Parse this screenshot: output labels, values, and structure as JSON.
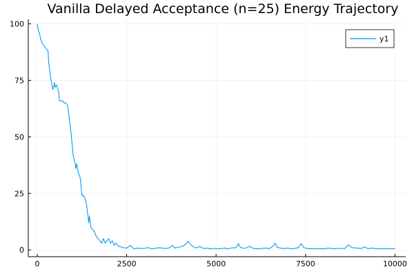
{
  "chart_data": {
    "type": "line",
    "title": "Vanilla Delayed Acceptance (n=25) Energy Trajectory",
    "xlabel": "",
    "ylabel": "",
    "xlim": [
      -250,
      10300
    ],
    "ylim": [
      -3,
      102
    ],
    "xticks": [
      0,
      2500,
      5000,
      7500,
      10000
    ],
    "xtick_labels": [
      "0",
      "2500",
      "5000",
      "7500",
      "10000"
    ],
    "yticks": [
      0,
      25,
      50,
      75,
      100
    ],
    "ytick_labels": [
      "0",
      "25",
      "50",
      "75",
      "100"
    ],
    "grid": true,
    "legend_position": "top-right",
    "series": [
      {
        "name": "y1",
        "color": "#009AFA",
        "points": [
          [
            0,
            100
          ],
          [
            30,
            97
          ],
          [
            60,
            96
          ],
          [
            100,
            93
          ],
          [
            150,
            91
          ],
          [
            200,
            90
          ],
          [
            250,
            89
          ],
          [
            300,
            88
          ],
          [
            320,
            83
          ],
          [
            360,
            78
          ],
          [
            400,
            74
          ],
          [
            430,
            71
          ],
          [
            460,
            72
          ],
          [
            480,
            74
          ],
          [
            500,
            72
          ],
          [
            540,
            73
          ],
          [
            580,
            71
          ],
          [
            600,
            70
          ],
          [
            620,
            66
          ],
          [
            700,
            66
          ],
          [
            760,
            65
          ],
          [
            800,
            65
          ],
          [
            850,
            64
          ],
          [
            880,
            60
          ],
          [
            920,
            55
          ],
          [
            950,
            51
          ],
          [
            980,
            46
          ],
          [
            1000,
            42
          ],
          [
            1050,
            39
          ],
          [
            1080,
            36
          ],
          [
            1100,
            38
          ],
          [
            1130,
            36
          ],
          [
            1150,
            34
          ],
          [
            1200,
            32
          ],
          [
            1220,
            29
          ],
          [
            1250,
            24
          ],
          [
            1300,
            24
          ],
          [
            1350,
            22
          ],
          [
            1380,
            20
          ],
          [
            1400,
            17
          ],
          [
            1420,
            15
          ],
          [
            1440,
            12
          ],
          [
            1460,
            15
          ],
          [
            1480,
            12
          ],
          [
            1500,
            10
          ],
          [
            1550,
            9
          ],
          [
            1600,
            8
          ],
          [
            1650,
            6
          ],
          [
            1700,
            5
          ],
          [
            1750,
            4
          ],
          [
            1800,
            3
          ],
          [
            1850,
            5
          ],
          [
            1900,
            3
          ],
          [
            1950,
            4
          ],
          [
            2000,
            5
          ],
          [
            2050,
            3
          ],
          [
            2100,
            4
          ],
          [
            2150,
            2
          ],
          [
            2200,
            3
          ],
          [
            2250,
            2
          ],
          [
            2300,
            1.5
          ],
          [
            2400,
            1
          ],
          [
            2500,
            0.8
          ],
          [
            2600,
            2
          ],
          [
            2700,
            0.5
          ],
          [
            2800,
            0.8
          ],
          [
            2900,
            0.6
          ],
          [
            3000,
            0.7
          ],
          [
            3100,
            1
          ],
          [
            3200,
            0.5
          ],
          [
            3300,
            0.7
          ],
          [
            3400,
            1
          ],
          [
            3500,
            0.8
          ],
          [
            3600,
            0.6
          ],
          [
            3700,
            0.9
          ],
          [
            3780,
            2
          ],
          [
            3850,
            0.8
          ],
          [
            3950,
            1.2
          ],
          [
            4050,
            1.5
          ],
          [
            4150,
            2.5
          ],
          [
            4220,
            3.8
          ],
          [
            4280,
            2.5
          ],
          [
            4350,
            1.5
          ],
          [
            4450,
            0.8
          ],
          [
            4550,
            1.5
          ],
          [
            4650,
            0.6
          ],
          [
            4750,
            0.8
          ],
          [
            4850,
            0.5
          ],
          [
            4950,
            0.7
          ],
          [
            5050,
            0.5
          ],
          [
            5150,
            0.6
          ],
          [
            5250,
            0.8
          ],
          [
            5350,
            0.5
          ],
          [
            5450,
            1
          ],
          [
            5520,
            0.8
          ],
          [
            5580,
            1.5
          ],
          [
            5620,
            2.8
          ],
          [
            5680,
            1
          ],
          [
            5800,
            0.7
          ],
          [
            5950,
            1.5
          ],
          [
            6050,
            0.6
          ],
          [
            6200,
            0.5
          ],
          [
            6350,
            0.8
          ],
          [
            6500,
            0.6
          ],
          [
            6600,
            1.8
          ],
          [
            6650,
            3
          ],
          [
            6700,
            1.2
          ],
          [
            6850,
            0.6
          ],
          [
            7000,
            0.8
          ],
          [
            7150,
            0.5
          ],
          [
            7300,
            1
          ],
          [
            7380,
            2.8
          ],
          [
            7450,
            1
          ],
          [
            7550,
            0.6
          ],
          [
            7700,
            0.5
          ],
          [
            7850,
            0.6
          ],
          [
            8000,
            0.5
          ],
          [
            8150,
            0.8
          ],
          [
            8300,
            0.5
          ],
          [
            8450,
            0.7
          ],
          [
            8600,
            0.6
          ],
          [
            8650,
            1.5
          ],
          [
            8700,
            2.2
          ],
          [
            8800,
            1
          ],
          [
            8950,
            0.8
          ],
          [
            9050,
            0.6
          ],
          [
            9150,
            1.3
          ],
          [
            9250,
            0.5
          ],
          [
            9350,
            0.8
          ],
          [
            9450,
            0.6
          ],
          [
            9550,
            0.5
          ],
          [
            9650,
            0.6
          ],
          [
            9750,
            0.5
          ],
          [
            9850,
            0.6
          ],
          [
            9950,
            0.5
          ],
          [
            10000,
            0.5
          ]
        ]
      }
    ]
  }
}
